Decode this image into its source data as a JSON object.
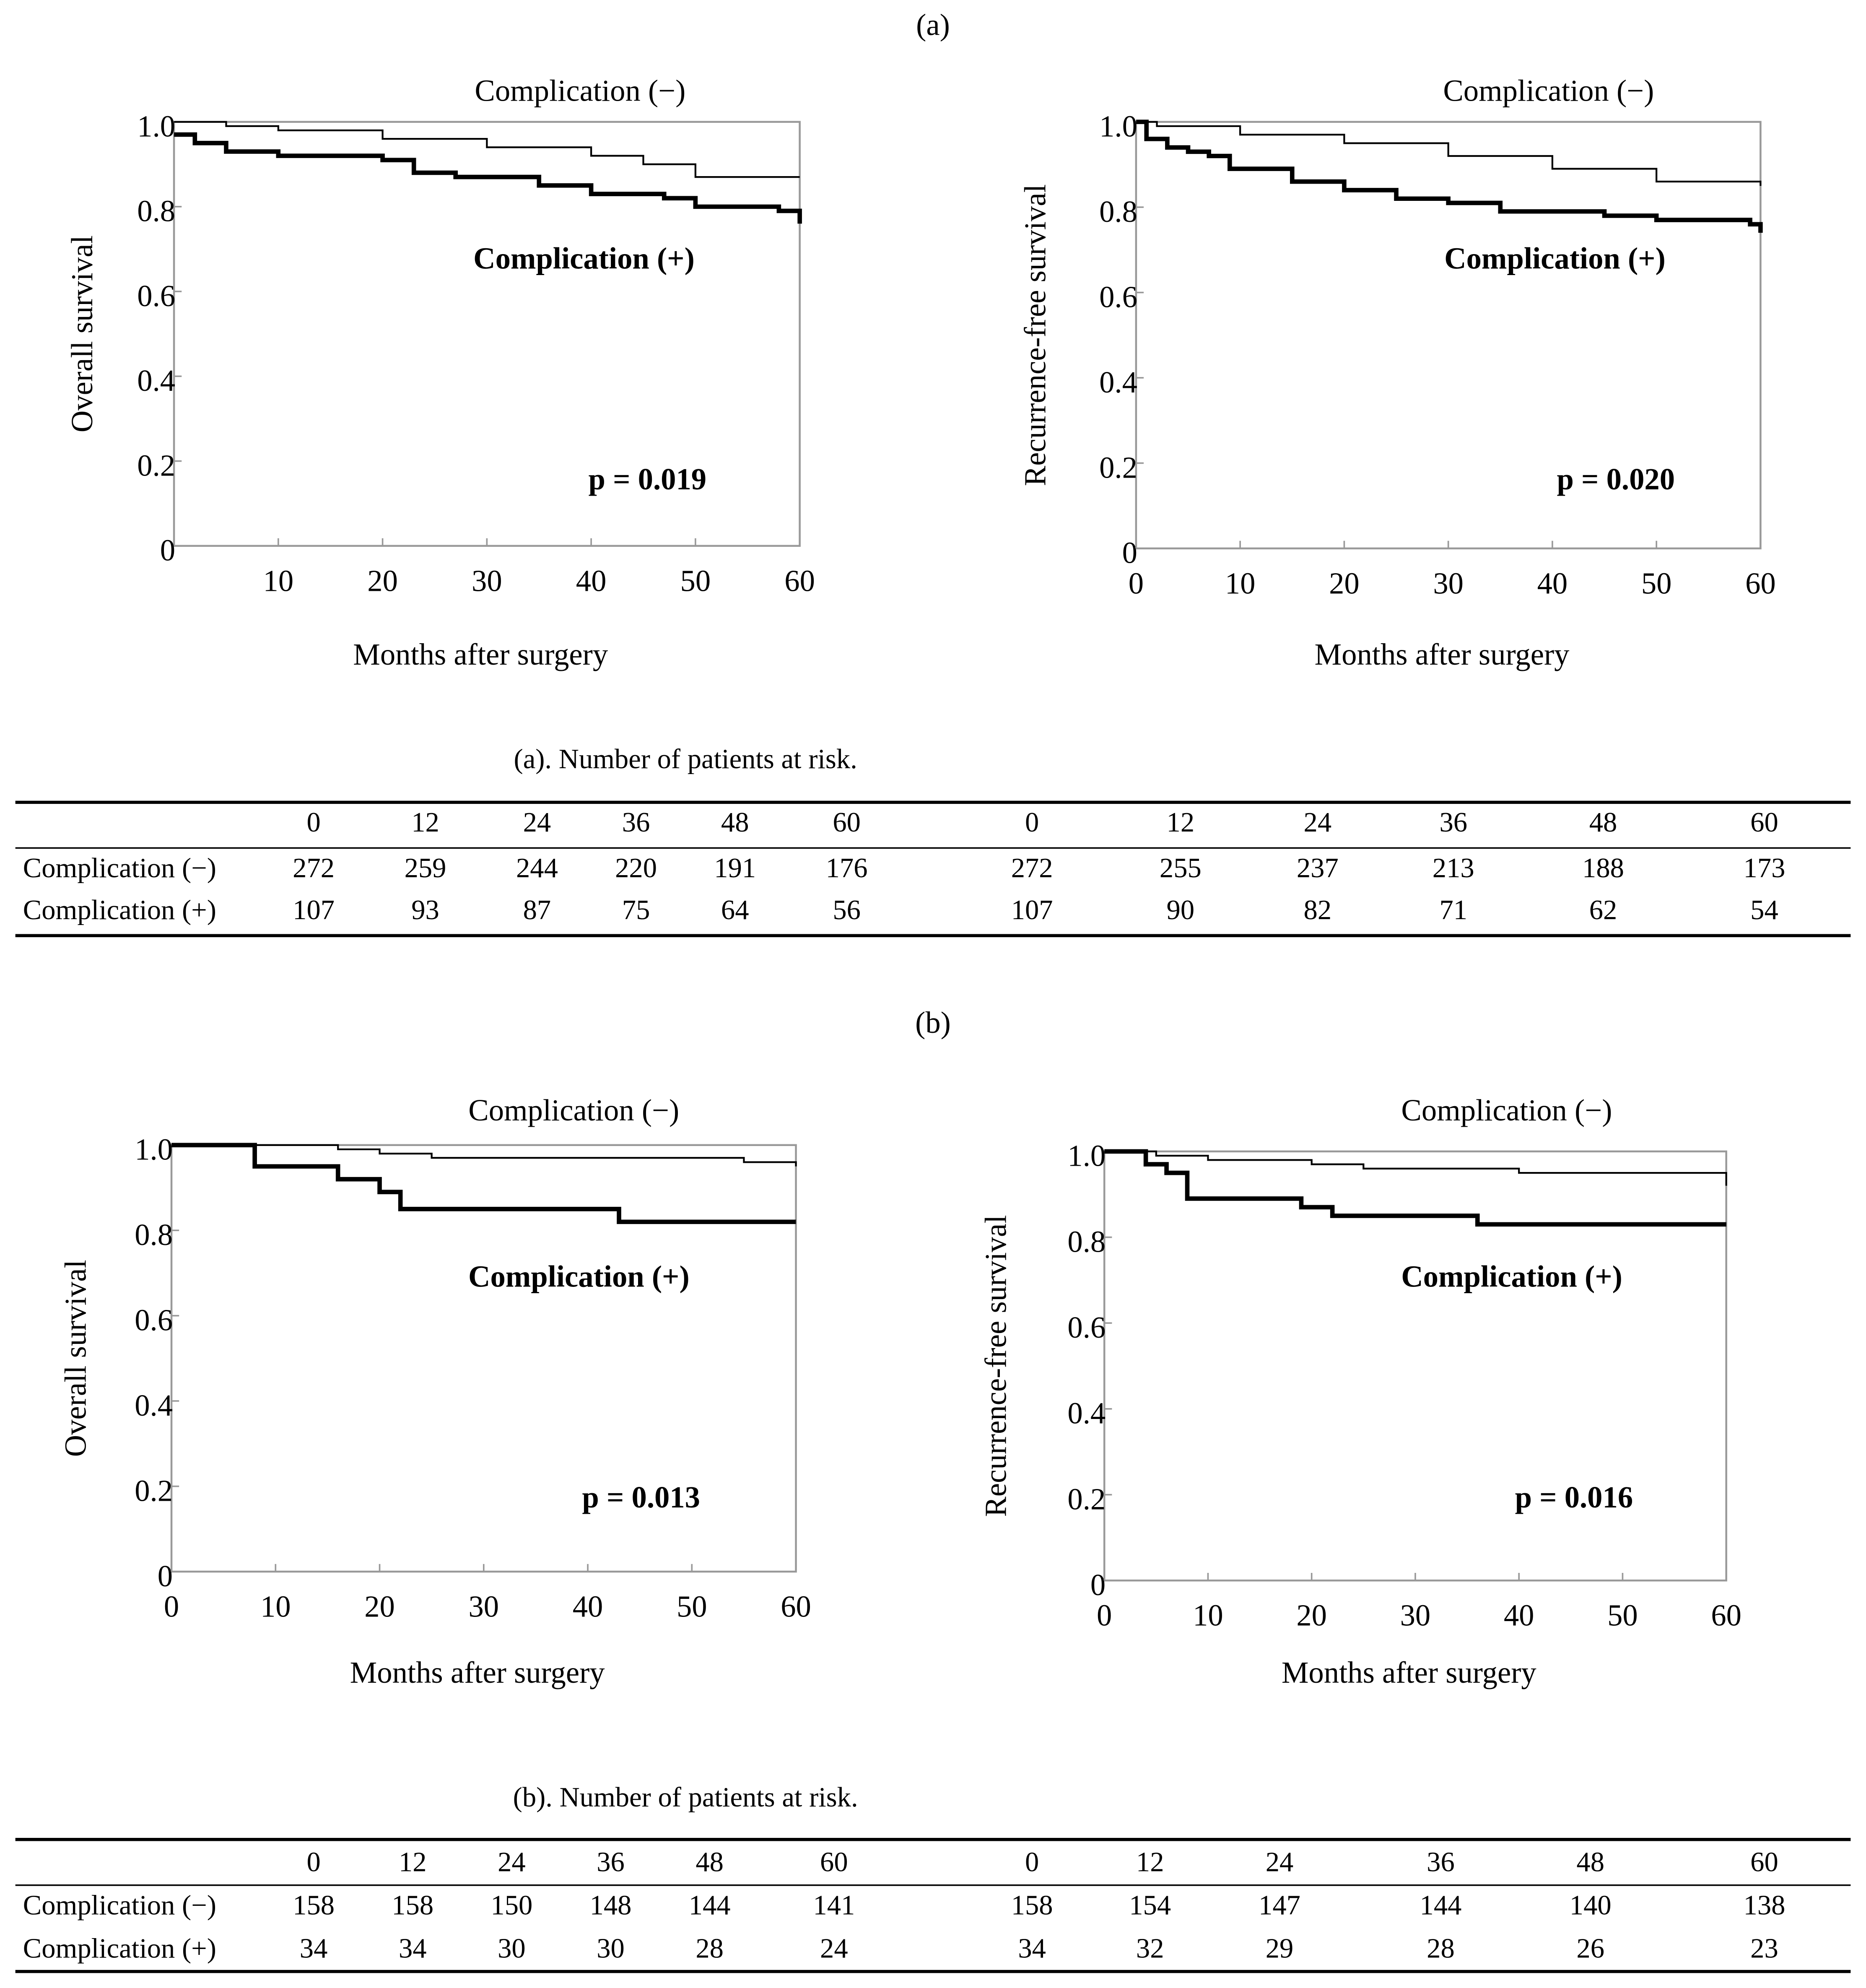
{
  "panels": [
    "(a)",
    "(b)"
  ],
  "chart_data": [
    {
      "type": "step",
      "title": "Complication (−)",
      "annotation": "p = 0.019",
      "x_label": "Months after surgery",
      "y_label": "Overall survival",
      "xlim": [
        0,
        60
      ],
      "xticks": [
        10,
        20,
        30,
        40,
        50,
        60
      ],
      "ylim": [
        0,
        1
      ],
      "yticks": [
        0,
        0.2,
        0.4,
        0.6,
        0.8,
        {
          "value": 1,
          "label": "1.0"
        }
      ],
      "series": [
        {
          "name": "Complication (−)",
          "color": "#000000",
          "x": [
            0,
            5,
            10,
            20,
            30,
            40,
            45,
            50,
            60
          ],
          "values": [
            1.0,
            0.99,
            0.98,
            0.96,
            0.94,
            0.92,
            0.9,
            0.87,
            0.87
          ]
        },
        {
          "name": "Complication (+)",
          "color": "#000000",
          "x": [
            0,
            2,
            5,
            10,
            20,
            23,
            27,
            35,
            40,
            47,
            50,
            58,
            60
          ],
          "values": [
            0.97,
            0.95,
            0.93,
            0.92,
            0.91,
            0.88,
            0.87,
            0.85,
            0.83,
            0.82,
            0.8,
            0.79,
            0.76
          ]
        }
      ]
    },
    {
      "type": "step",
      "title": "Complication (−)",
      "annotation": "p = 0.020",
      "x_label": "Months after surgery",
      "y_label": "Recurrence-free survival",
      "xlim": [
        0,
        60
      ],
      "xticks": [
        0,
        10,
        20,
        30,
        40,
        50,
        60
      ],
      "ylim": [
        0,
        1
      ],
      "yticks": [
        0,
        0.2,
        0.4,
        0.6,
        0.8,
        {
          "value": 1,
          "label": "1.0"
        }
      ],
      "series": [
        {
          "name": "Complication (−)",
          "color": "#000000",
          "x": [
            0,
            2,
            10,
            20,
            30,
            40,
            50,
            60
          ],
          "values": [
            1.0,
            0.99,
            0.97,
            0.95,
            0.92,
            0.89,
            0.86,
            0.85
          ]
        },
        {
          "name": "Complication (+)",
          "color": "#000000",
          "x": [
            0,
            1,
            3,
            5,
            7,
            9,
            15,
            20,
            25,
            30,
            35,
            45,
            50,
            59,
            60
          ],
          "values": [
            1.0,
            0.96,
            0.94,
            0.93,
            0.92,
            0.89,
            0.86,
            0.84,
            0.82,
            0.81,
            0.79,
            0.78,
            0.77,
            0.76,
            0.74
          ]
        }
      ]
    },
    {
      "type": "step",
      "title": "Complication (−)",
      "annotation": "p = 0.013",
      "x_label": "Months after surgery",
      "y_label": "Overall survival",
      "xlim": [
        0,
        60
      ],
      "xticks": [
        0,
        10,
        20,
        30,
        40,
        50,
        60
      ],
      "ylim": [
        0,
        1
      ],
      "yticks": [
        0,
        0.2,
        0.4,
        0.6,
        0.8,
        {
          "value": 1,
          "label": "1.0"
        }
      ],
      "series": [
        {
          "name": "Complication (−)",
          "color": "#000000",
          "x": [
            0,
            15,
            16,
            20,
            25,
            45,
            55,
            60
          ],
          "values": [
            1.0,
            1.0,
            0.99,
            0.98,
            0.97,
            0.97,
            0.96,
            0.95
          ]
        },
        {
          "name": "Complication (+)",
          "color": "#000000",
          "x": [
            0,
            8,
            16,
            20,
            22,
            43,
            60
          ],
          "values": [
            1.0,
            0.95,
            0.92,
            0.89,
            0.85,
            0.82,
            0.82
          ]
        }
      ]
    },
    {
      "type": "step",
      "title": "Complication (−)",
      "annotation": "p = 0.016",
      "x_label": "Months after surgery",
      "y_label": "Recurrence-free survival",
      "xlim": [
        0,
        60
      ],
      "xticks": [
        0,
        10,
        20,
        30,
        40,
        50,
        60
      ],
      "ylim": [
        0,
        1
      ],
      "yticks": [
        0,
        0.2,
        0.4,
        0.6,
        0.8,
        {
          "value": 1,
          "label": "1.0"
        }
      ],
      "series": [
        {
          "name": "Complication (−)",
          "color": "#000000",
          "x": [
            0,
            3,
            5,
            10,
            20,
            25,
            38,
            40,
            58,
            60
          ],
          "values": [
            1.0,
            1.0,
            0.99,
            0.98,
            0.97,
            0.96,
            0.96,
            0.95,
            0.95,
            0.92
          ]
        },
        {
          "name": "Complication (+)",
          "color": "#000000",
          "x": [
            0,
            4,
            6,
            8,
            19,
            22,
            36,
            60
          ],
          "values": [
            1.0,
            0.97,
            0.95,
            0.89,
            0.87,
            0.85,
            0.83,
            0.83
          ]
        }
      ]
    }
  ],
  "tables": [
    {
      "caption": "(a). Number of patients at risk.",
      "columns": [
        0,
        12,
        24,
        36,
        48,
        60,
        0,
        12,
        24,
        36,
        48,
        60
      ],
      "rows": [
        [
          "Complication (−)",
          272,
          259,
          244,
          220,
          191,
          176,
          272,
          255,
          237,
          213,
          188,
          173
        ],
        [
          "Complication (+)",
          107,
          93,
          87,
          75,
          64,
          56,
          107,
          90,
          82,
          71,
          62,
          54
        ]
      ]
    },
    {
      "caption": "(b). Number of patients at risk.",
      "columns": [
        0,
        12,
        24,
        36,
        48,
        60,
        0,
        12,
        24,
        36,
        48,
        60
      ],
      "rows": [
        [
          "Complication (−)",
          158,
          158,
          150,
          148,
          144,
          141,
          158,
          154,
          147,
          144,
          140,
          138
        ],
        [
          "Complication (+)",
          34,
          34,
          30,
          30,
          28,
          24,
          34,
          32,
          29,
          28,
          26,
          23
        ]
      ]
    }
  ]
}
